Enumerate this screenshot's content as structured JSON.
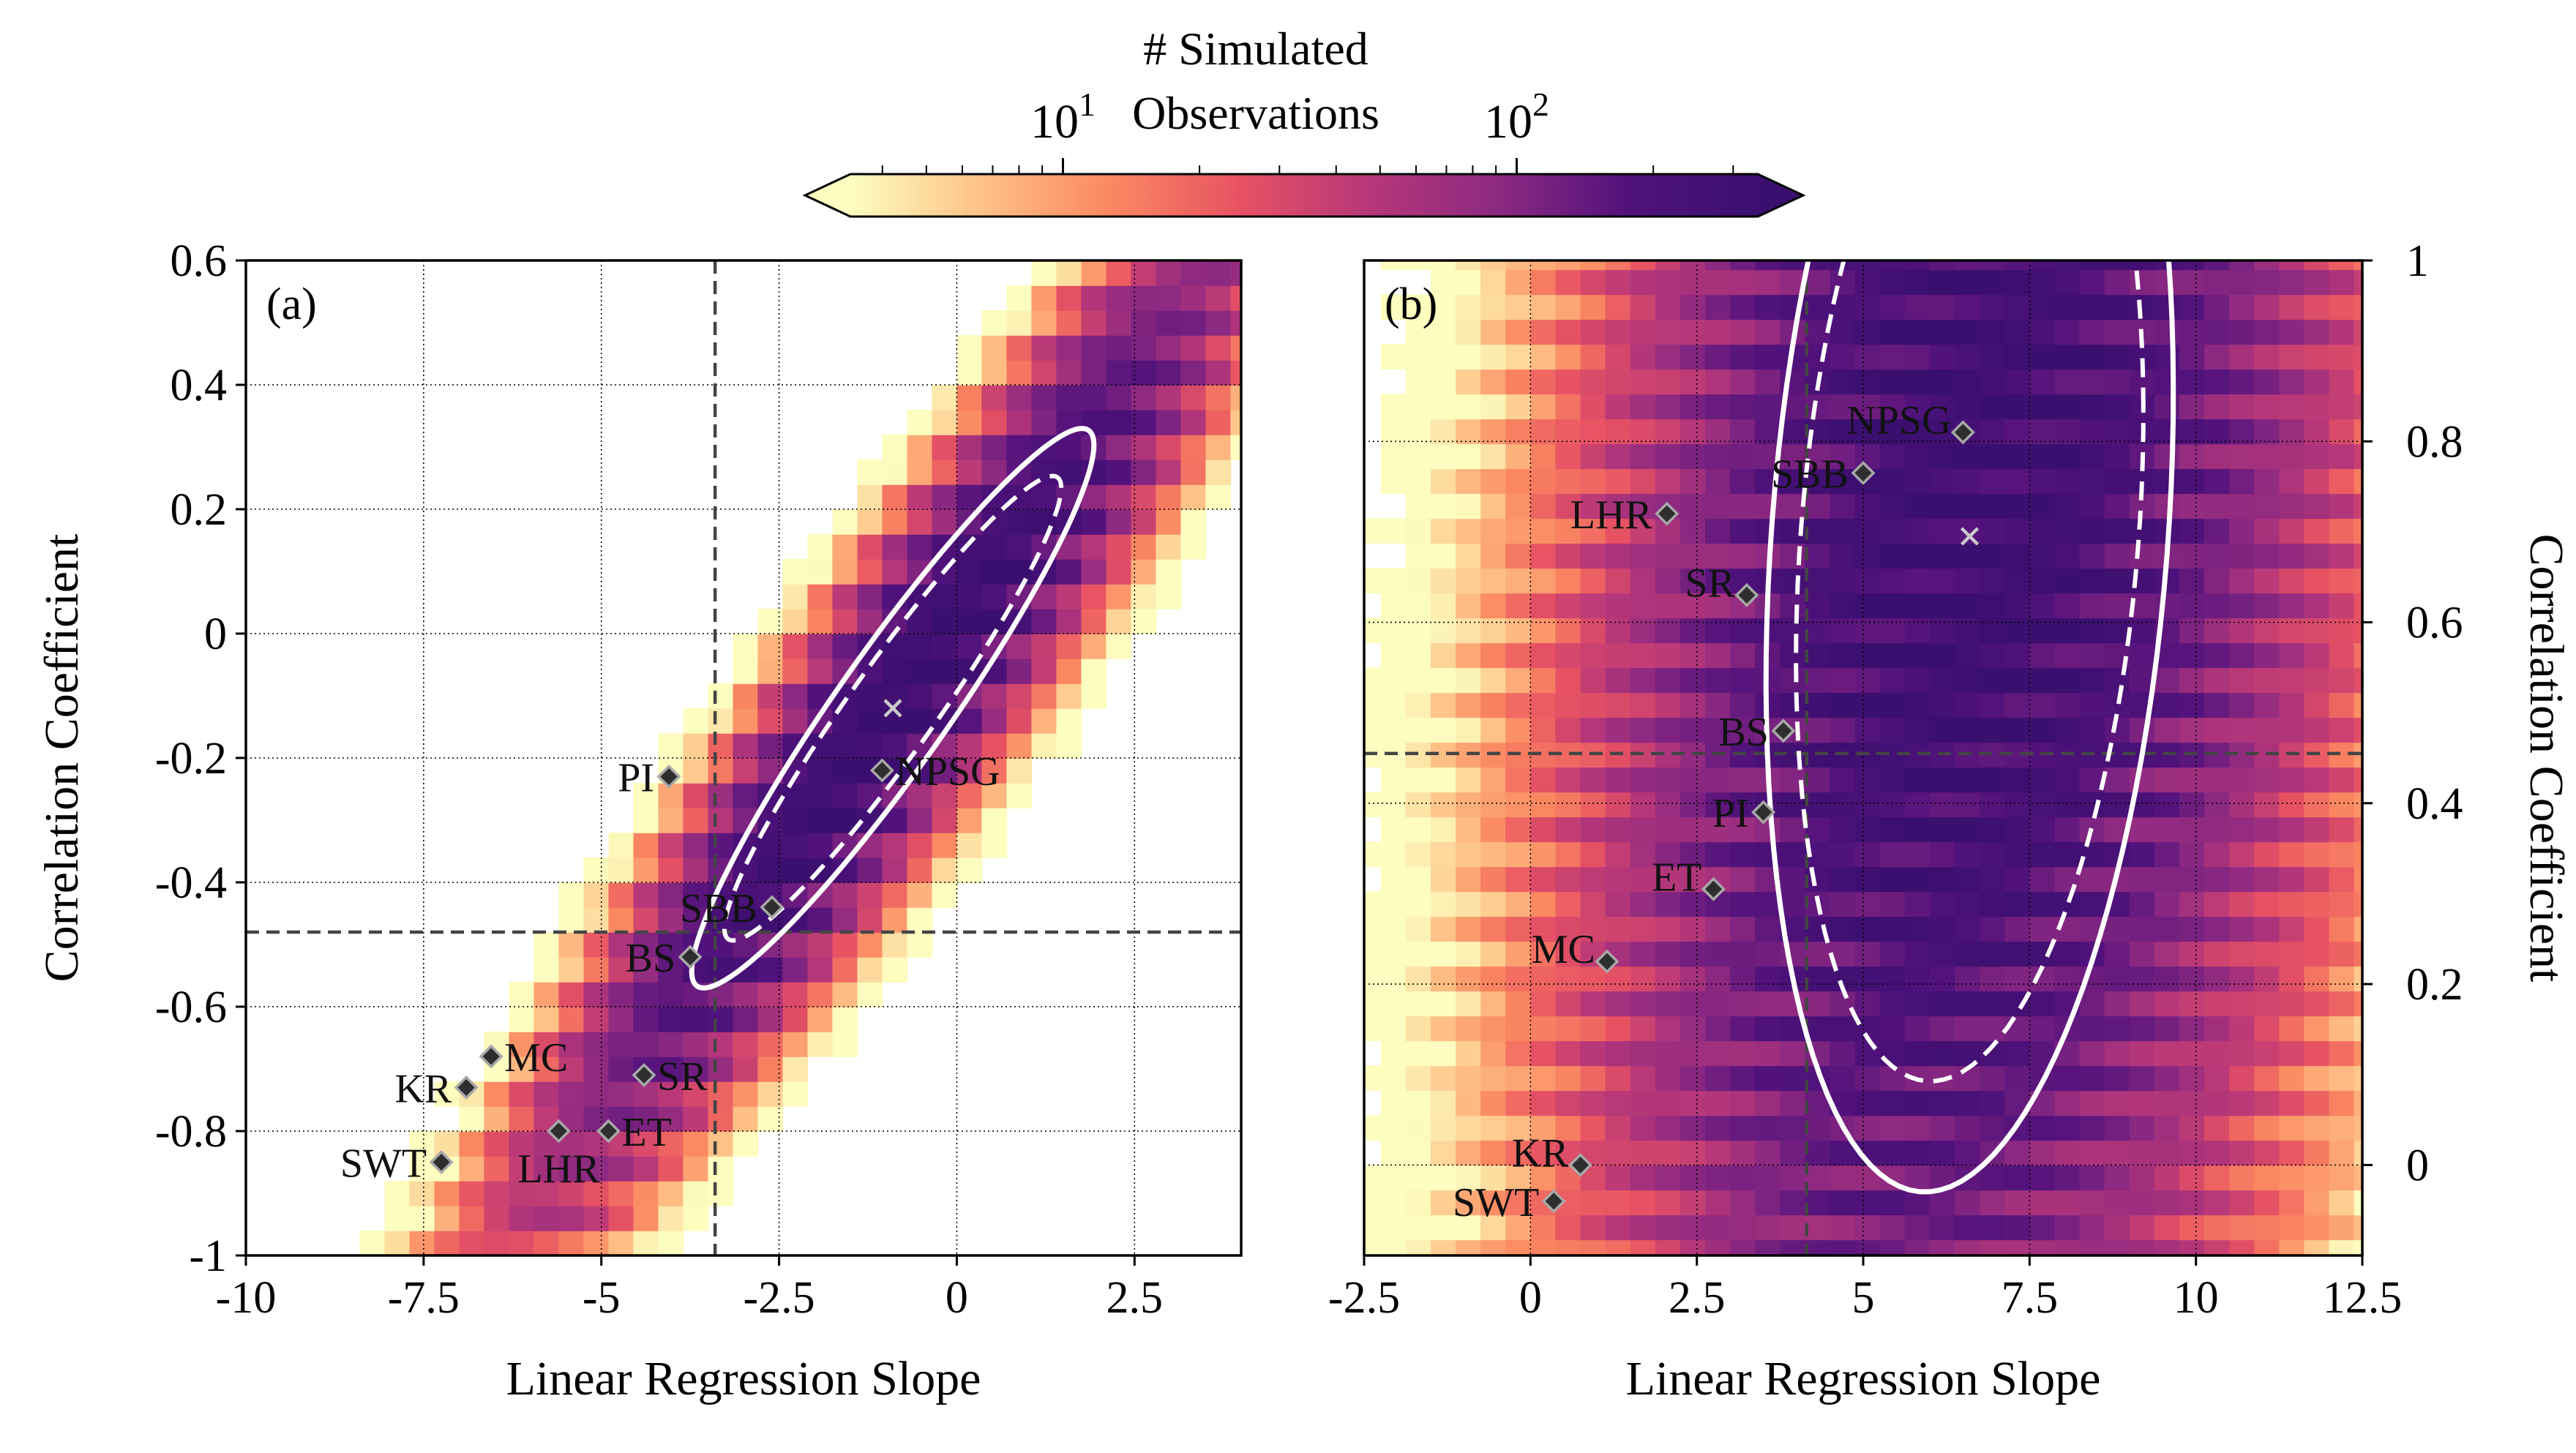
{
  "colorbar": {
    "label_line1": "# Simulated",
    "label_line2": "Observations",
    "scale": "log",
    "range": [
      3.4,
      340
    ],
    "ticks": [
      {
        "base": "10",
        "exp": "1",
        "value": 10
      },
      {
        "base": "10",
        "exp": "2",
        "value": 100
      }
    ],
    "colormap": [
      "#fcfdbf",
      "#fec287",
      "#fb8861",
      "#e75263",
      "#b73779",
      "#8c2981",
      "#51127c",
      "#3b0f70"
    ],
    "extend": "both"
  },
  "chart_data": [
    {
      "type": "heatmap",
      "panel_label": "(a)",
      "xlabel": "Linear Regression Slope",
      "ylabel": "Correlation Coefficient",
      "ylabel_side": "left",
      "xlim": [
        -10,
        4
      ],
      "ylim": [
        -1,
        0.6
      ],
      "xticks": [
        {
          "value": -10,
          "label": "-10"
        },
        {
          "value": -7.5,
          "label": "-7.5"
        },
        {
          "value": -5,
          "label": "-5"
        },
        {
          "value": -2.5,
          "label": "-2.5"
        },
        {
          "value": 0,
          "label": "0"
        },
        {
          "value": 2.5,
          "label": "2.5"
        }
      ],
      "yticks": [
        {
          "value": -1,
          "label": "-1"
        },
        {
          "value": -0.8,
          "label": "-0.8"
        },
        {
          "value": -0.6,
          "label": "-0.6"
        },
        {
          "value": -0.4,
          "label": "-0.4"
        },
        {
          "value": -0.2,
          "label": "-0.2"
        },
        {
          "value": 0,
          "label": "0"
        },
        {
          "value": 0.2,
          "label": "0.2"
        },
        {
          "value": 0.4,
          "label": "0.4"
        },
        {
          "value": 0.6,
          "label": "0.6"
        }
      ],
      "grid": true,
      "bin_width_x": 0.35,
      "bin_width_y": 0.04,
      "distribution": {
        "center": [
          -0.9,
          -0.12
        ],
        "axis_dir": [
          2.3,
          0.345
        ],
        "major_sd": 1.13,
        "minor_sd": 0.055,
        "peak_count": 340
      },
      "threshold_lines": {
        "x": -3.4,
        "y": -0.48
      },
      "ellipse": {
        "center": [
          -0.9,
          -0.12
        ],
        "axis_dir": [
          2.3,
          0.345
        ],
        "solid_half_axes": [
          1.23,
          0.065
        ],
        "dashed_half_axes": [
          1.03,
          0.05
        ]
      },
      "mean_marker": [
        -0.9,
        -0.12
      ],
      "sites": [
        {
          "name": "PI",
          "x": -4.05,
          "y": -0.23,
          "label_side": "left"
        },
        {
          "name": "NPSG",
          "x": -1.05,
          "y": -0.22,
          "label_side": "right"
        },
        {
          "name": "SBB",
          "x": -2.6,
          "y": -0.44,
          "label_side": "left"
        },
        {
          "name": "BS",
          "x": -3.75,
          "y": -0.52,
          "label_side": "left"
        },
        {
          "name": "MC",
          "x": -6.55,
          "y": -0.68,
          "label_side": "right"
        },
        {
          "name": "KR",
          "x": -6.9,
          "y": -0.73,
          "label_side": "left"
        },
        {
          "name": "SR",
          "x": -4.4,
          "y": -0.71,
          "label_side": "right"
        },
        {
          "name": "LHR",
          "x": -5.6,
          "y": -0.8,
          "label_side": "below"
        },
        {
          "name": "ET",
          "x": -4.9,
          "y": -0.8,
          "label_side": "right"
        },
        {
          "name": "SWT",
          "x": -7.25,
          "y": -0.85,
          "label_side": "left"
        }
      ]
    },
    {
      "type": "heatmap",
      "panel_label": "(b)",
      "xlabel": "Linear Regression Slope",
      "ylabel": "Correlation Coefficient",
      "ylabel_side": "right",
      "xlim": [
        -2.5,
        12.5
      ],
      "ylim": [
        -0.1,
        1.0
      ],
      "xticks": [
        {
          "value": -2.5,
          "label": "-2.5"
        },
        {
          "value": 0,
          "label": "0"
        },
        {
          "value": 2.5,
          "label": "2.5"
        },
        {
          "value": 5,
          "label": "5"
        },
        {
          "value": 7.5,
          "label": "7.5"
        },
        {
          "value": 10,
          "label": "10"
        },
        {
          "value": 12.5,
          "label": "12.5"
        }
      ],
      "yticks": [
        {
          "value": 0,
          "label": "0"
        },
        {
          "value": 0.2,
          "label": "0.2"
        },
        {
          "value": 0.4,
          "label": "0.4"
        },
        {
          "value": 0.6,
          "label": "0.6"
        },
        {
          "value": 0.8,
          "label": "0.8"
        },
        {
          "value": 1.0,
          "label": "1"
        }
      ],
      "grid": true,
      "bin_width_x": 0.375,
      "bin_width_y": 0.0275,
      "distribution": {
        "center": [
          6.6,
          0.695
        ],
        "axis_dir": [
          3.0,
          0.165
        ],
        "major_sd": 0.92,
        "minor_sd": 0.19,
        "peak_count": 300
      },
      "threshold_lines": {
        "x": 4.15,
        "y": 0.455
      },
      "ellipse": {
        "center": [
          6.6,
          0.695
        ],
        "axis_dir": [
          3.0,
          0.165
        ],
        "solid_half_axes": [
          1.02,
          0.235
        ],
        "dashed_half_axes": [
          0.87,
          0.195
        ]
      },
      "mean_marker": [
        6.6,
        0.695
      ],
      "sites": [
        {
          "name": "NPSG",
          "x": 6.5,
          "y": 0.81,
          "label_side": "left-up"
        },
        {
          "name": "SBB",
          "x": 5.0,
          "y": 0.765,
          "label_side": "left"
        },
        {
          "name": "LHR",
          "x": 2.05,
          "y": 0.72,
          "label_side": "left"
        },
        {
          "name": "SR",
          "x": 3.25,
          "y": 0.63,
          "label_side": "left-up"
        },
        {
          "name": "BS",
          "x": 3.8,
          "y": 0.48,
          "label_side": "left"
        },
        {
          "name": "PI",
          "x": 3.5,
          "y": 0.39,
          "label_side": "left"
        },
        {
          "name": "ET",
          "x": 2.75,
          "y": 0.305,
          "label_side": "left-up"
        },
        {
          "name": "MC",
          "x": 1.15,
          "y": 0.225,
          "label_side": "left-up"
        },
        {
          "name": "KR",
          "x": 0.75,
          "y": 0.0,
          "label_side": "left-up"
        },
        {
          "name": "SWT",
          "x": 0.35,
          "y": -0.04,
          "label_side": "left"
        }
      ]
    }
  ]
}
